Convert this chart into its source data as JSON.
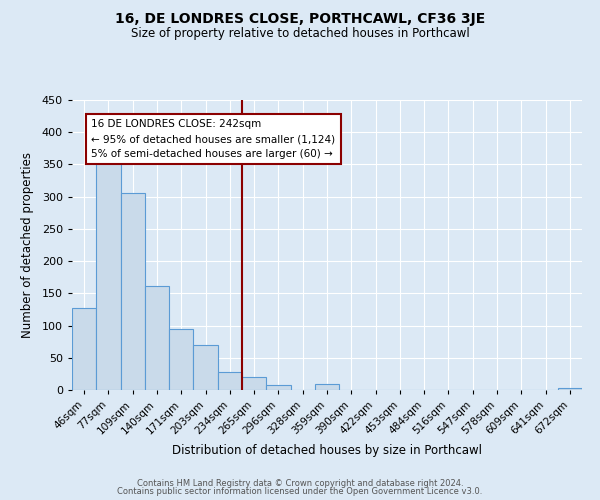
{
  "title": "16, DE LONDRES CLOSE, PORTHCAWL, CF36 3JE",
  "subtitle": "Size of property relative to detached houses in Porthcawl",
  "xlabel": "Distribution of detached houses by size in Porthcawl",
  "ylabel": "Number of detached properties",
  "bin_labels": [
    "46sqm",
    "77sqm",
    "109sqm",
    "140sqm",
    "171sqm",
    "203sqm",
    "234sqm",
    "265sqm",
    "296sqm",
    "328sqm",
    "359sqm",
    "390sqm",
    "422sqm",
    "453sqm",
    "484sqm",
    "516sqm",
    "547sqm",
    "578sqm",
    "609sqm",
    "641sqm",
    "672sqm"
  ],
  "bar_heights": [
    128,
    365,
    305,
    162,
    95,
    70,
    28,
    20,
    8,
    0,
    9,
    0,
    0,
    0,
    0,
    0,
    0,
    0,
    0,
    0,
    3
  ],
  "bar_color": "#c9daea",
  "bar_edge_color": "#5b9bd5",
  "vline_x_bin": 6.5,
  "vline_color": "#8b0000",
  "annotation_title": "16 DE LONDRES CLOSE: 242sqm",
  "annotation_line1": "← 95% of detached houses are smaller (1,124)",
  "annotation_line2": "5% of semi-detached houses are larger (60) →",
  "annotation_box_color": "#ffffff",
  "annotation_box_edge": "#8b0000",
  "ylim": [
    0,
    450
  ],
  "yticks": [
    0,
    50,
    100,
    150,
    200,
    250,
    300,
    350,
    400,
    450
  ],
  "footer1": "Contains HM Land Registry data © Crown copyright and database right 2024.",
  "footer2": "Contains public sector information licensed under the Open Government Licence v3.0.",
  "background_color": "#dce9f5",
  "title_fontsize": 10,
  "subtitle_fontsize": 8.5
}
